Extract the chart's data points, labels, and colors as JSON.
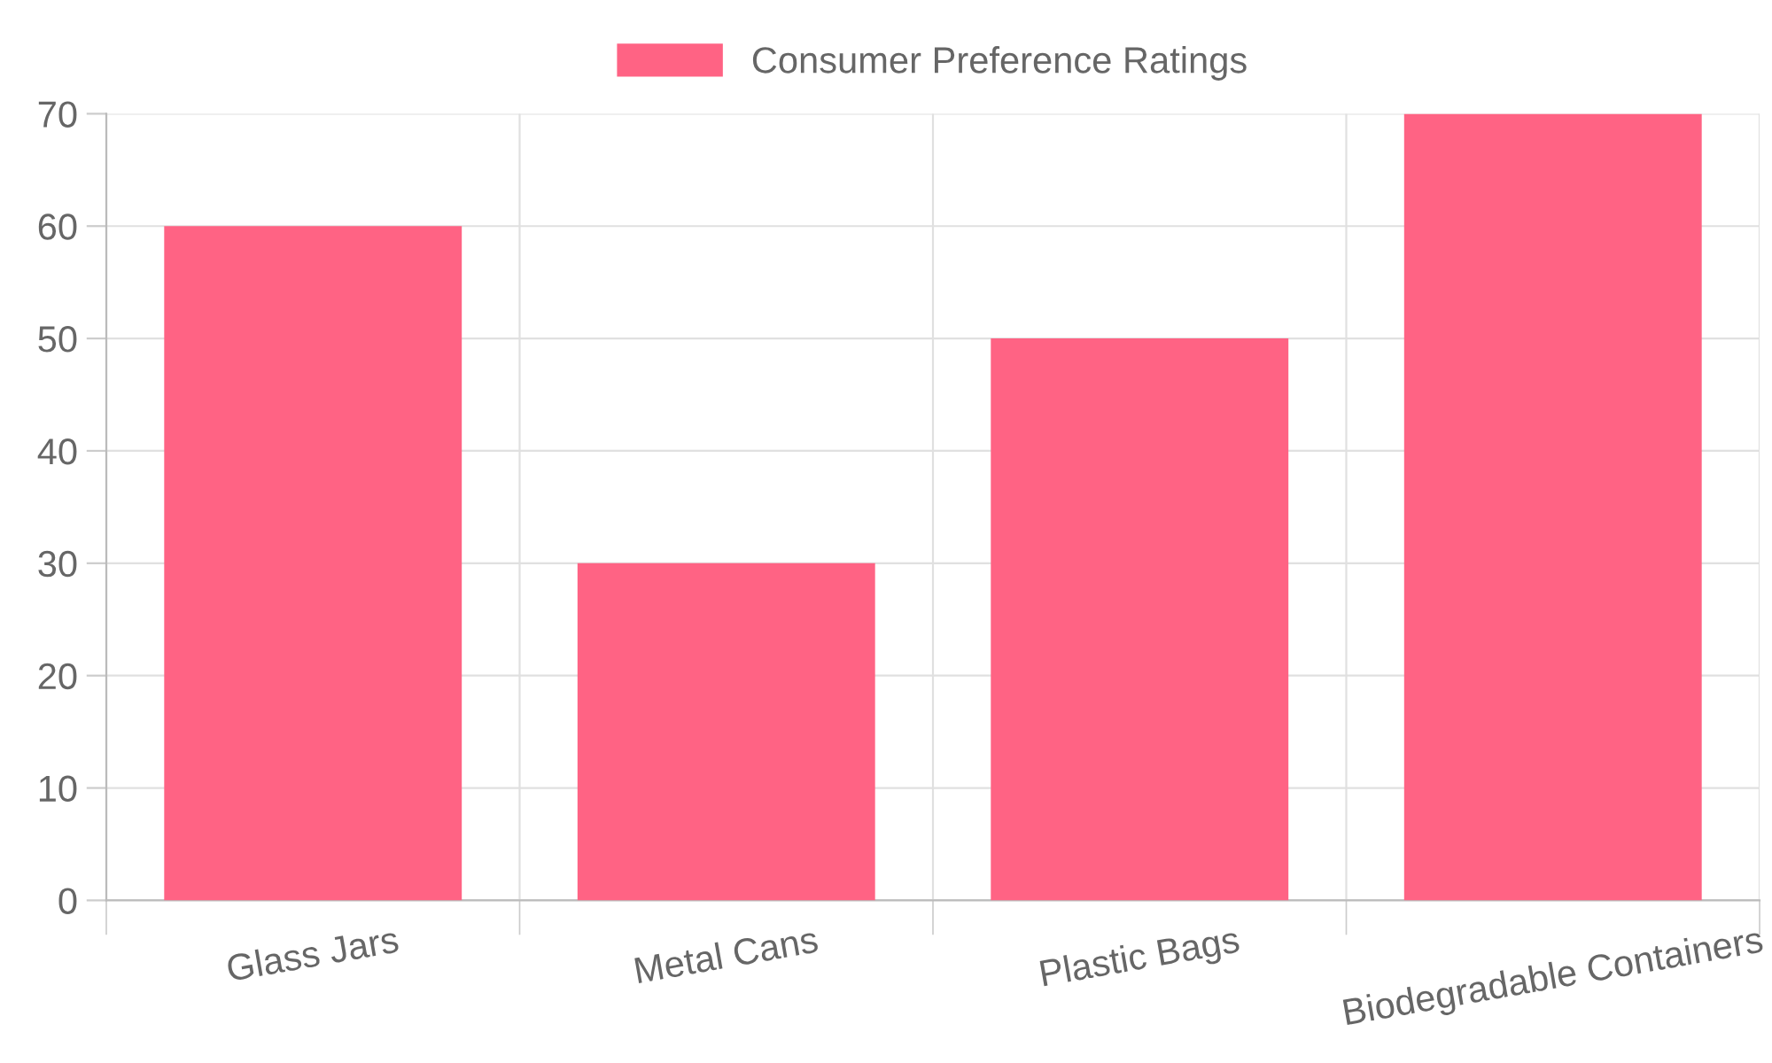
{
  "chart_data": {
    "type": "bar",
    "categories": [
      "Glass Jars",
      "Metal Cans",
      "Plastic Bags",
      "Biodegradable Containers"
    ],
    "series": [
      {
        "name": "Consumer Preference Ratings",
        "color": "#ff6384",
        "values": [
          60,
          30,
          50,
          70
        ]
      }
    ],
    "ylim": [
      0,
      70
    ],
    "yticks": [
      0,
      10,
      20,
      30,
      40,
      50,
      60,
      70
    ],
    "grid": true,
    "legend": "top"
  }
}
